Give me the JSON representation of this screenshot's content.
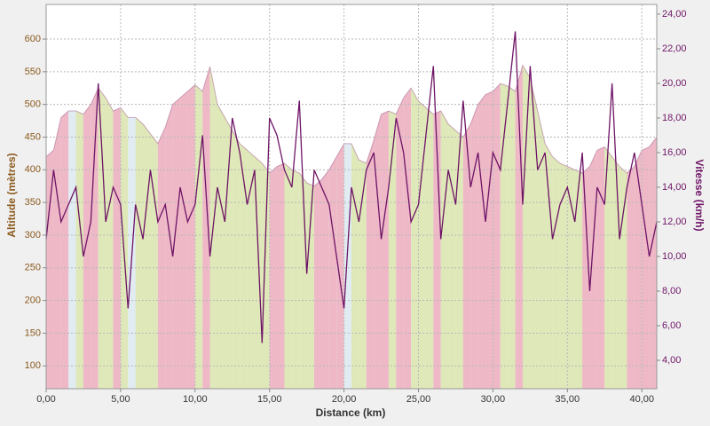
{
  "chart_data": {
    "type": "area",
    "x_label": "Distance (km)",
    "y_label": "Altitude (mètres)",
    "y2_label": "Vitesse (km/h)",
    "x": [
      0,
      0.5,
      1,
      1.5,
      2,
      2.5,
      3,
      3.5,
      4,
      4.5,
      5,
      5.5,
      6,
      6.5,
      7,
      7.5,
      8,
      8.5,
      9,
      9.5,
      10,
      10.5,
      11,
      11.5,
      12,
      12.5,
      13,
      13.5,
      14,
      14.5,
      15,
      15.5,
      16,
      16.5,
      17,
      17.5,
      18,
      18.5,
      19,
      19.5,
      20,
      20.5,
      21,
      21.5,
      22,
      22.5,
      23,
      23.5,
      24,
      24.5,
      25,
      25.5,
      26,
      26.5,
      27,
      27.5,
      28,
      28.5,
      29,
      29.5,
      30,
      30.5,
      31,
      31.5,
      32,
      32.5,
      33,
      33.5,
      34,
      34.5,
      35,
      35.5,
      36,
      36.5,
      37,
      37.5,
      38,
      38.5,
      39,
      39.5,
      40,
      40.5,
      41
    ],
    "series": [
      {
        "name": "Altitude",
        "color": "#a05a8a",
        "up_color": "#e8a0b4",
        "down_color": "#d4e0a0",
        "flat_color": "#d6e6ee",
        "values": [
          420,
          430,
          480,
          490,
          490,
          485,
          500,
          525,
          510,
          490,
          495,
          480,
          480,
          470,
          455,
          440,
          465,
          500,
          510,
          520,
          530,
          520,
          558,
          500,
          480,
          460,
          440,
          430,
          420,
          410,
          395,
          405,
          410,
          400,
          395,
          380,
          375,
          385,
          400,
          420,
          440,
          440,
          415,
          410,
          445,
          485,
          490,
          485,
          510,
          525,
          505,
          495,
          485,
          490,
          470,
          460,
          450,
          470,
          500,
          515,
          520,
          532,
          528,
          520,
          560,
          540,
          490,
          440,
          420,
          410,
          405,
          400,
          395,
          405,
          430,
          435,
          420,
          405,
          395,
          405,
          430,
          435,
          450
        ]
      },
      {
        "name": "Vitesse",
        "color": "#6e1466",
        "axis": "y2",
        "values": [
          11,
          15,
          12,
          13,
          14,
          10,
          12,
          20,
          12,
          14,
          13,
          7,
          13,
          11,
          15,
          12,
          13,
          10,
          14,
          12,
          13,
          17,
          10,
          14,
          12,
          18,
          16,
          13,
          15,
          5,
          18,
          17,
          15,
          14,
          19,
          9,
          15,
          14,
          13,
          10,
          7,
          14,
          12,
          15,
          16,
          11,
          14,
          18,
          16,
          12,
          13,
          17,
          21,
          11,
          15,
          13,
          19,
          14,
          16,
          12,
          16,
          15,
          19,
          23,
          13,
          21,
          15,
          16,
          11,
          13,
          14,
          12,
          16,
          8,
          14,
          13,
          20,
          11,
          14,
          16,
          13,
          10,
          12
        ]
      }
    ],
    "xlim": [
      0,
      41
    ],
    "xticks": [
      {
        "value": 0,
        "label": "0,00"
      },
      {
        "value": 5,
        "label": "5,00"
      },
      {
        "value": 10,
        "label": "10,00"
      },
      {
        "value": 15,
        "label": "15,00"
      },
      {
        "value": 20,
        "label": "20,00"
      },
      {
        "value": 25,
        "label": "25,00"
      },
      {
        "value": 30,
        "label": "30,00"
      },
      {
        "value": 35,
        "label": "35,00"
      },
      {
        "value": 40,
        "label": "40,00"
      }
    ],
    "ylim": [
      65,
      653
    ],
    "yticks": [
      100,
      150,
      200,
      250,
      300,
      350,
      400,
      450,
      500,
      550,
      600
    ],
    "y2lim": [
      2.36,
      24.56
    ],
    "y2ticks": [
      {
        "value": 4,
        "label": "4,00"
      },
      {
        "value": 6,
        "label": "6,00"
      },
      {
        "value": 8,
        "label": "8,00"
      },
      {
        "value": 10,
        "label": "10,00"
      },
      {
        "value": 12,
        "label": "12,00"
      },
      {
        "value": 14,
        "label": "14,00"
      },
      {
        "value": 16,
        "label": "16,00"
      },
      {
        "value": 18,
        "label": "18,00"
      },
      {
        "value": 20,
        "label": "20,00"
      },
      {
        "value": 22,
        "label": "22,00"
      },
      {
        "value": 24,
        "label": "24,00"
      }
    ],
    "grid": true
  }
}
